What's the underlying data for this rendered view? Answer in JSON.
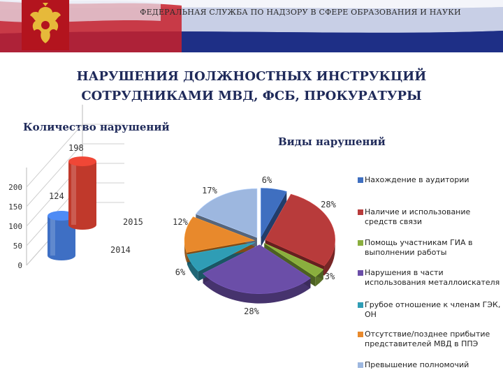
{
  "header": {
    "banner_text": "ФЕДЕРАЛЬНАЯ СЛУЖБА ПО НАДЗОРУ В СФЕРЕ ОБРАЗОВАНИЯ И НАУКИ"
  },
  "slide": {
    "title_line1": "НАРУШЕНИЯ ДОЛЖНОСТНЫХ ИНСТРУКЦИЙ",
    "title_line2": "СОТРУДНИКАМИ МВД, ФСБ, ПРОКУРАТУРЫ",
    "count_heading": "Количество нарушений",
    "types_heading": "Виды нарушений"
  },
  "colors": {
    "banner_blue": "#1e2f86",
    "flag_red": "#c8202a",
    "title": "#1f2a5a"
  },
  "chart_data": [
    {
      "type": "bar",
      "style": "3d-cylinder",
      "categories": [
        "2014",
        "2015"
      ],
      "values": [
        124,
        198
      ],
      "data_labels": [
        "124",
        "198"
      ],
      "yticks": [
        "0",
        "50",
        "100",
        "150",
        "200"
      ],
      "ylim": [
        0,
        250
      ],
      "colors": [
        "#3e6fc4",
        "#c0392b"
      ],
      "grid": true
    },
    {
      "type": "pie",
      "style": "3d-exploded",
      "slices": [
        {
          "label": "Нахождение в аудитории",
          "value": 6,
          "data_label": "6%",
          "color": "#3f6fc0"
        },
        {
          "label": "Наличие и использование средств связи",
          "value": 28,
          "data_label": "28%",
          "color": "#b83b3b"
        },
        {
          "label": "Помощь участникам ГИА в выполнении работы",
          "value": 3,
          "data_label": "3%",
          "color": "#8aae3e"
        },
        {
          "label": "Нарушения в части использования металлоискателя",
          "value": 28,
          "data_label": "28%",
          "color": "#6b4ea8"
        },
        {
          "label": "Грубое отношение к членам ГЭК, ОН",
          "value": 6,
          "data_label": "6%",
          "color": "#2f9db5"
        },
        {
          "label": "Отсутствие/позднее прибытие представителей МВД в ППЭ",
          "value": 12,
          "data_label": "12%",
          "color": "#e8892c"
        },
        {
          "label": "Превышение полномочий",
          "value": 17,
          "data_label": "17%",
          "color": "#9db7df"
        }
      ],
      "legend_position": "right"
    }
  ]
}
